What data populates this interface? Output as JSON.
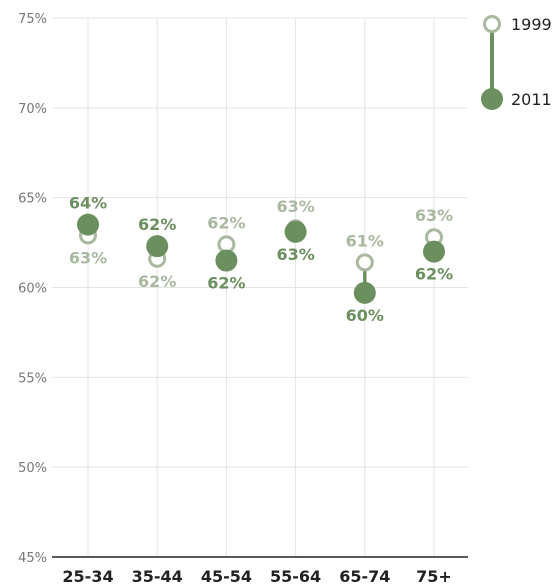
{
  "chart_data": {
    "type": "scatter",
    "categories": [
      "25-34",
      "35-44",
      "45-54",
      "55-64",
      "65-74",
      "75+"
    ],
    "series": [
      {
        "name": "1999",
        "values": [
          62.9,
          61.6,
          62.4,
          63.3,
          61.4,
          62.8
        ],
        "labels": [
          "63%",
          "62%",
          "62%",
          "63%",
          "61%",
          "63%"
        ],
        "color": "#a9b99f",
        "marker": "hollow-circle"
      },
      {
        "name": "2011",
        "values": [
          63.5,
          62.3,
          61.5,
          63.1,
          59.7,
          62.0
        ],
        "labels": [
          "64%",
          "62%",
          "62%",
          "63%",
          "60%",
          "62%"
        ],
        "color": "#6b8f5e",
        "marker": "filled-circle"
      }
    ],
    "ylim": [
      45,
      75
    ],
    "yticks": [
      75,
      70,
      65,
      60,
      55,
      50,
      45
    ],
    "ytick_labels": [
      "75%",
      "70%",
      "65%",
      "60%",
      "55%",
      "50%",
      "45%"
    ],
    "grid": true,
    "legend_position": "top-right"
  },
  "colors": {
    "old": "#a9b99f",
    "new": "#6b8f5e",
    "grid": "#e4e4e4",
    "axis": "#222222"
  }
}
